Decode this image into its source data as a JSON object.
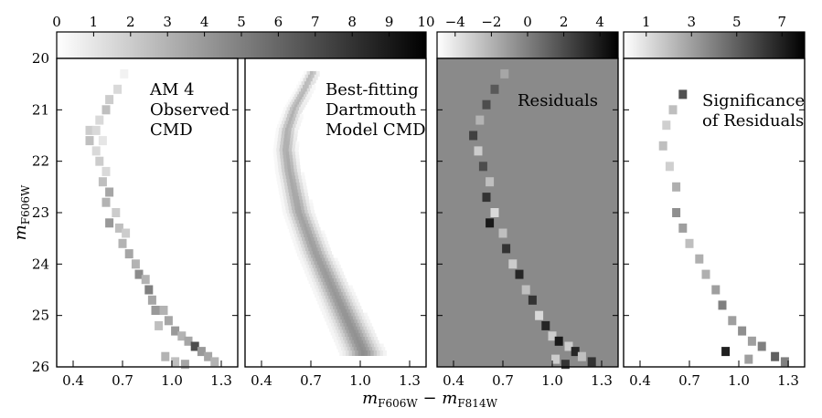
{
  "chart_data": [
    {
      "type": "heatmap",
      "panel_label": [
        "AM 4",
        "Observed",
        "CMD"
      ],
      "colorbar_ticks": [
        "0",
        "1",
        "2",
        "3",
        "4",
        "5",
        "6",
        "7",
        "8",
        "9",
        "10"
      ],
      "colorbar_range": [
        0,
        10
      ],
      "colormap": "white-to-black",
      "xlim": [
        0.3,
        1.4
      ],
      "ylim": [
        26.0,
        20.0
      ],
      "xtick_labels": [
        "0.4",
        "0.7",
        "1.0",
        "1.3"
      ],
      "ytick_labels": [
        "20",
        "21",
        "22",
        "23",
        "24",
        "25",
        "26"
      ],
      "ylabel": "m_F606W",
      "cells": [
        [
          0.71,
          20.3,
          0.5
        ],
        [
          0.67,
          20.6,
          1.5
        ],
        [
          0.62,
          20.8,
          2.0
        ],
        [
          0.6,
          21.0,
          2.5
        ],
        [
          0.56,
          21.2,
          1.5
        ],
        [
          0.5,
          21.4,
          2.0
        ],
        [
          0.54,
          21.4,
          1.5
        ],
        [
          0.5,
          21.6,
          2.5
        ],
        [
          0.54,
          21.8,
          1.5
        ],
        [
          0.58,
          21.6,
          1.0
        ],
        [
          0.56,
          22.0,
          2.0
        ],
        [
          0.6,
          22.2,
          1.5
        ],
        [
          0.58,
          22.4,
          2.5
        ],
        [
          0.62,
          22.6,
          3.5
        ],
        [
          0.6,
          22.8,
          3.0
        ],
        [
          0.66,
          23.0,
          2.0
        ],
        [
          0.62,
          23.2,
          4.0
        ],
        [
          0.68,
          23.3,
          2.5
        ],
        [
          0.72,
          23.4,
          2.0
        ],
        [
          0.7,
          23.6,
          3.0
        ],
        [
          0.74,
          23.8,
          3.5
        ],
        [
          0.78,
          24.0,
          3.0
        ],
        [
          0.8,
          24.2,
          4.5
        ],
        [
          0.84,
          24.3,
          3.0
        ],
        [
          0.86,
          24.5,
          5.0
        ],
        [
          0.88,
          24.7,
          3.5
        ],
        [
          0.9,
          24.9,
          4.0
        ],
        [
          0.95,
          24.9,
          3.0
        ],
        [
          0.92,
          25.2,
          2.5
        ],
        [
          0.98,
          25.1,
          3.5
        ],
        [
          1.02,
          25.3,
          4.0
        ],
        [
          1.06,
          25.4,
          3.0
        ],
        [
          1.1,
          25.5,
          3.5
        ],
        [
          1.14,
          25.6,
          7.0
        ],
        [
          1.18,
          25.7,
          4.0
        ],
        [
          1.22,
          25.8,
          3.5
        ],
        [
          1.26,
          25.9,
          3.0
        ],
        [
          1.02,
          25.9,
          2.5
        ],
        [
          0.96,
          25.8,
          3.0
        ],
        [
          1.08,
          25.95,
          3.5
        ]
      ]
    },
    {
      "type": "heatmap",
      "panel_label": [
        "Best-fitting",
        "Dartmouth",
        "Model CMD"
      ],
      "colorbar_range": [
        0,
        10
      ],
      "colormap": "white-to-black",
      "xlim": [
        0.3,
        1.4
      ],
      "ylim": [
        26.0,
        20.0
      ],
      "xtick_labels": [
        "0.4",
        "0.7",
        "1.0",
        "1.3"
      ],
      "model_ridge": [
        [
          0.71,
          20.3
        ],
        [
          0.65,
          20.7
        ],
        [
          0.6,
          21.0
        ],
        [
          0.56,
          21.4
        ],
        [
          0.55,
          21.8
        ],
        [
          0.57,
          22.2
        ],
        [
          0.6,
          22.6
        ],
        [
          0.63,
          23.0
        ],
        [
          0.68,
          23.4
        ],
        [
          0.73,
          23.8
        ],
        [
          0.79,
          24.2
        ],
        [
          0.85,
          24.6
        ],
        [
          0.91,
          25.0
        ],
        [
          0.97,
          25.4
        ],
        [
          1.03,
          25.8
        ]
      ],
      "model_peak_density": 4.5
    },
    {
      "type": "heatmap",
      "panel_label": [
        "Residuals"
      ],
      "colorbar_ticks": [
        "−4",
        "−2",
        "0",
        "2",
        "4"
      ],
      "colorbar_range": [
        -5,
        5
      ],
      "colormap": "white-to-black",
      "xlim": [
        0.3,
        1.4
      ],
      "ylim": [
        26.0,
        20.0
      ],
      "xtick_labels": [
        "0.4",
        "0.7",
        "1.0",
        "1.3"
      ],
      "cells": [
        [
          0.71,
          20.3,
          -1.5
        ],
        [
          0.65,
          20.6,
          1.5
        ],
        [
          0.6,
          20.9,
          2.0
        ],
        [
          0.56,
          21.2,
          -2.0
        ],
        [
          0.52,
          21.5,
          2.5
        ],
        [
          0.55,
          21.8,
          -3.0
        ],
        [
          0.58,
          22.1,
          2.0
        ],
        [
          0.62,
          22.4,
          -2.5
        ],
        [
          0.6,
          22.7,
          3.0
        ],
        [
          0.65,
          23.0,
          -3.5
        ],
        [
          0.62,
          23.2,
          4.0
        ],
        [
          0.7,
          23.4,
          -2.5
        ],
        [
          0.72,
          23.7,
          3.0
        ],
        [
          0.76,
          24.0,
          -3.0
        ],
        [
          0.8,
          24.2,
          3.5
        ],
        [
          0.84,
          24.5,
          -2.5
        ],
        [
          0.88,
          24.7,
          3.0
        ],
        [
          0.92,
          25.0,
          -3.5
        ],
        [
          0.96,
          25.2,
          3.5
        ],
        [
          1.0,
          25.4,
          -3.0
        ],
        [
          1.04,
          25.5,
          4.0
        ],
        [
          1.1,
          25.6,
          -3.0
        ],
        [
          1.14,
          25.7,
          3.5
        ],
        [
          1.18,
          25.8,
          -2.5
        ],
        [
          1.24,
          25.9,
          3.0
        ],
        [
          1.02,
          25.85,
          -3.0
        ],
        [
          1.08,
          25.95,
          3.0
        ]
      ]
    },
    {
      "type": "heatmap",
      "panel_label": [
        "Significance",
        "of Residuals"
      ],
      "colorbar_ticks": [
        "1",
        "3",
        "5",
        "7"
      ],
      "colorbar_range": [
        0,
        8
      ],
      "colormap": "white-to-black",
      "xlim": [
        0.3,
        1.4
      ],
      "ylim": [
        26.0,
        20.0
      ],
      "xtick_labels": [
        "0.4",
        "0.7",
        "1.0",
        "1.3"
      ],
      "cells": [
        [
          0.66,
          20.7,
          5.5
        ],
        [
          0.6,
          21.0,
          2.0
        ],
        [
          0.56,
          21.3,
          1.5
        ],
        [
          0.54,
          21.7,
          2.0
        ],
        [
          0.58,
          22.1,
          1.5
        ],
        [
          0.62,
          22.5,
          2.5
        ],
        [
          0.62,
          23.0,
          3.5
        ],
        [
          0.66,
          23.3,
          3.0
        ],
        [
          0.7,
          23.6,
          2.0
        ],
        [
          0.76,
          23.9,
          2.5
        ],
        [
          0.8,
          24.2,
          2.5
        ],
        [
          0.86,
          24.5,
          3.0
        ],
        [
          0.9,
          24.8,
          4.0
        ],
        [
          0.96,
          25.1,
          3.0
        ],
        [
          1.02,
          25.3,
          3.5
        ],
        [
          1.08,
          25.5,
          3.0
        ],
        [
          1.14,
          25.6,
          4.0
        ],
        [
          0.92,
          25.7,
          7.0
        ],
        [
          1.22,
          25.8,
          5.0
        ],
        [
          1.28,
          25.9,
          4.0
        ],
        [
          1.06,
          25.85,
          3.0
        ]
      ]
    }
  ],
  "xlabel": "m_F606W − m_F814W"
}
